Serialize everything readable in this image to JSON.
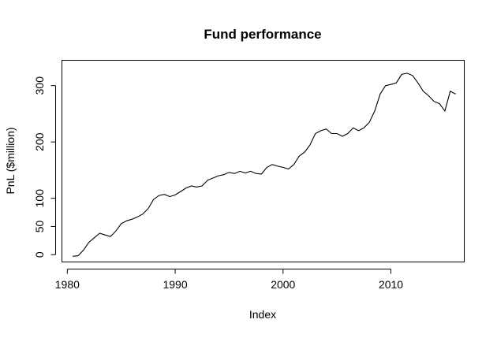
{
  "chart_data": {
    "type": "line",
    "title": "Fund performance",
    "xlabel": "Index",
    "ylabel": "PnL ($million)",
    "xlim": [
      1979.5,
      2016.8
    ],
    "ylim": [
      -13,
      345
    ],
    "xticks": [
      1980,
      1990,
      2000,
      2010
    ],
    "xtick_labels": [
      "1980",
      "1990",
      "2000",
      "2010"
    ],
    "yticks": [
      0,
      50,
      100,
      200,
      300
    ],
    "ytick_labels": [
      "0",
      "50",
      "100",
      "200",
      "300"
    ],
    "grid": false,
    "legend": "none",
    "series": [
      {
        "x": [
          1980.5,
          1981.0,
          1981.5,
          1982.0,
          1982.5,
          1983.0,
          1983.5,
          1984.0,
          1984.5,
          1985.0,
          1985.5,
          1986.0,
          1986.5,
          1987.0,
          1987.5,
          1988.0,
          1988.5,
          1989.0,
          1989.5,
          1990.0,
          1990.5,
          1991.0,
          1991.5,
          1992.0,
          1992.5,
          1993.0,
          1993.5,
          1994.0,
          1994.5,
          1995.0,
          1995.5,
          1996.0,
          1996.5,
          1997.0,
          1997.5,
          1998.0,
          1998.5,
          1999.0,
          1999.5,
          2000.0,
          2000.5,
          2001.0,
          2001.5,
          2002.0,
          2002.5,
          2003.0,
          2003.5,
          2004.0,
          2004.5,
          2005.0,
          2005.5,
          2006.0,
          2006.5,
          2007.0,
          2007.5,
          2008.0,
          2008.5,
          2009.0,
          2009.5,
          2010.0,
          2010.5,
          2011.0,
          2011.5,
          2012.0,
          2012.5,
          2013.0,
          2013.5,
          2014.0,
          2014.5,
          2015.0,
          2015.5,
          2016.0
        ],
        "values": [
          -3,
          -2,
          8,
          22,
          30,
          38,
          35,
          32,
          42,
          55,
          60,
          63,
          67,
          72,
          82,
          98,
          105,
          107,
          103,
          106,
          112,
          118,
          122,
          120,
          122,
          132,
          136,
          140,
          142,
          146,
          144,
          148,
          145,
          148,
          144,
          143,
          155,
          160,
          157,
          155,
          152,
          160,
          175,
          182,
          195,
          215,
          220,
          223,
          215,
          215,
          210,
          215,
          225,
          220,
          225,
          235,
          255,
          285,
          300,
          302,
          305,
          320,
          322,
          318,
          305,
          290,
          282,
          272,
          268,
          255,
          290,
          285
        ]
      }
    ]
  }
}
